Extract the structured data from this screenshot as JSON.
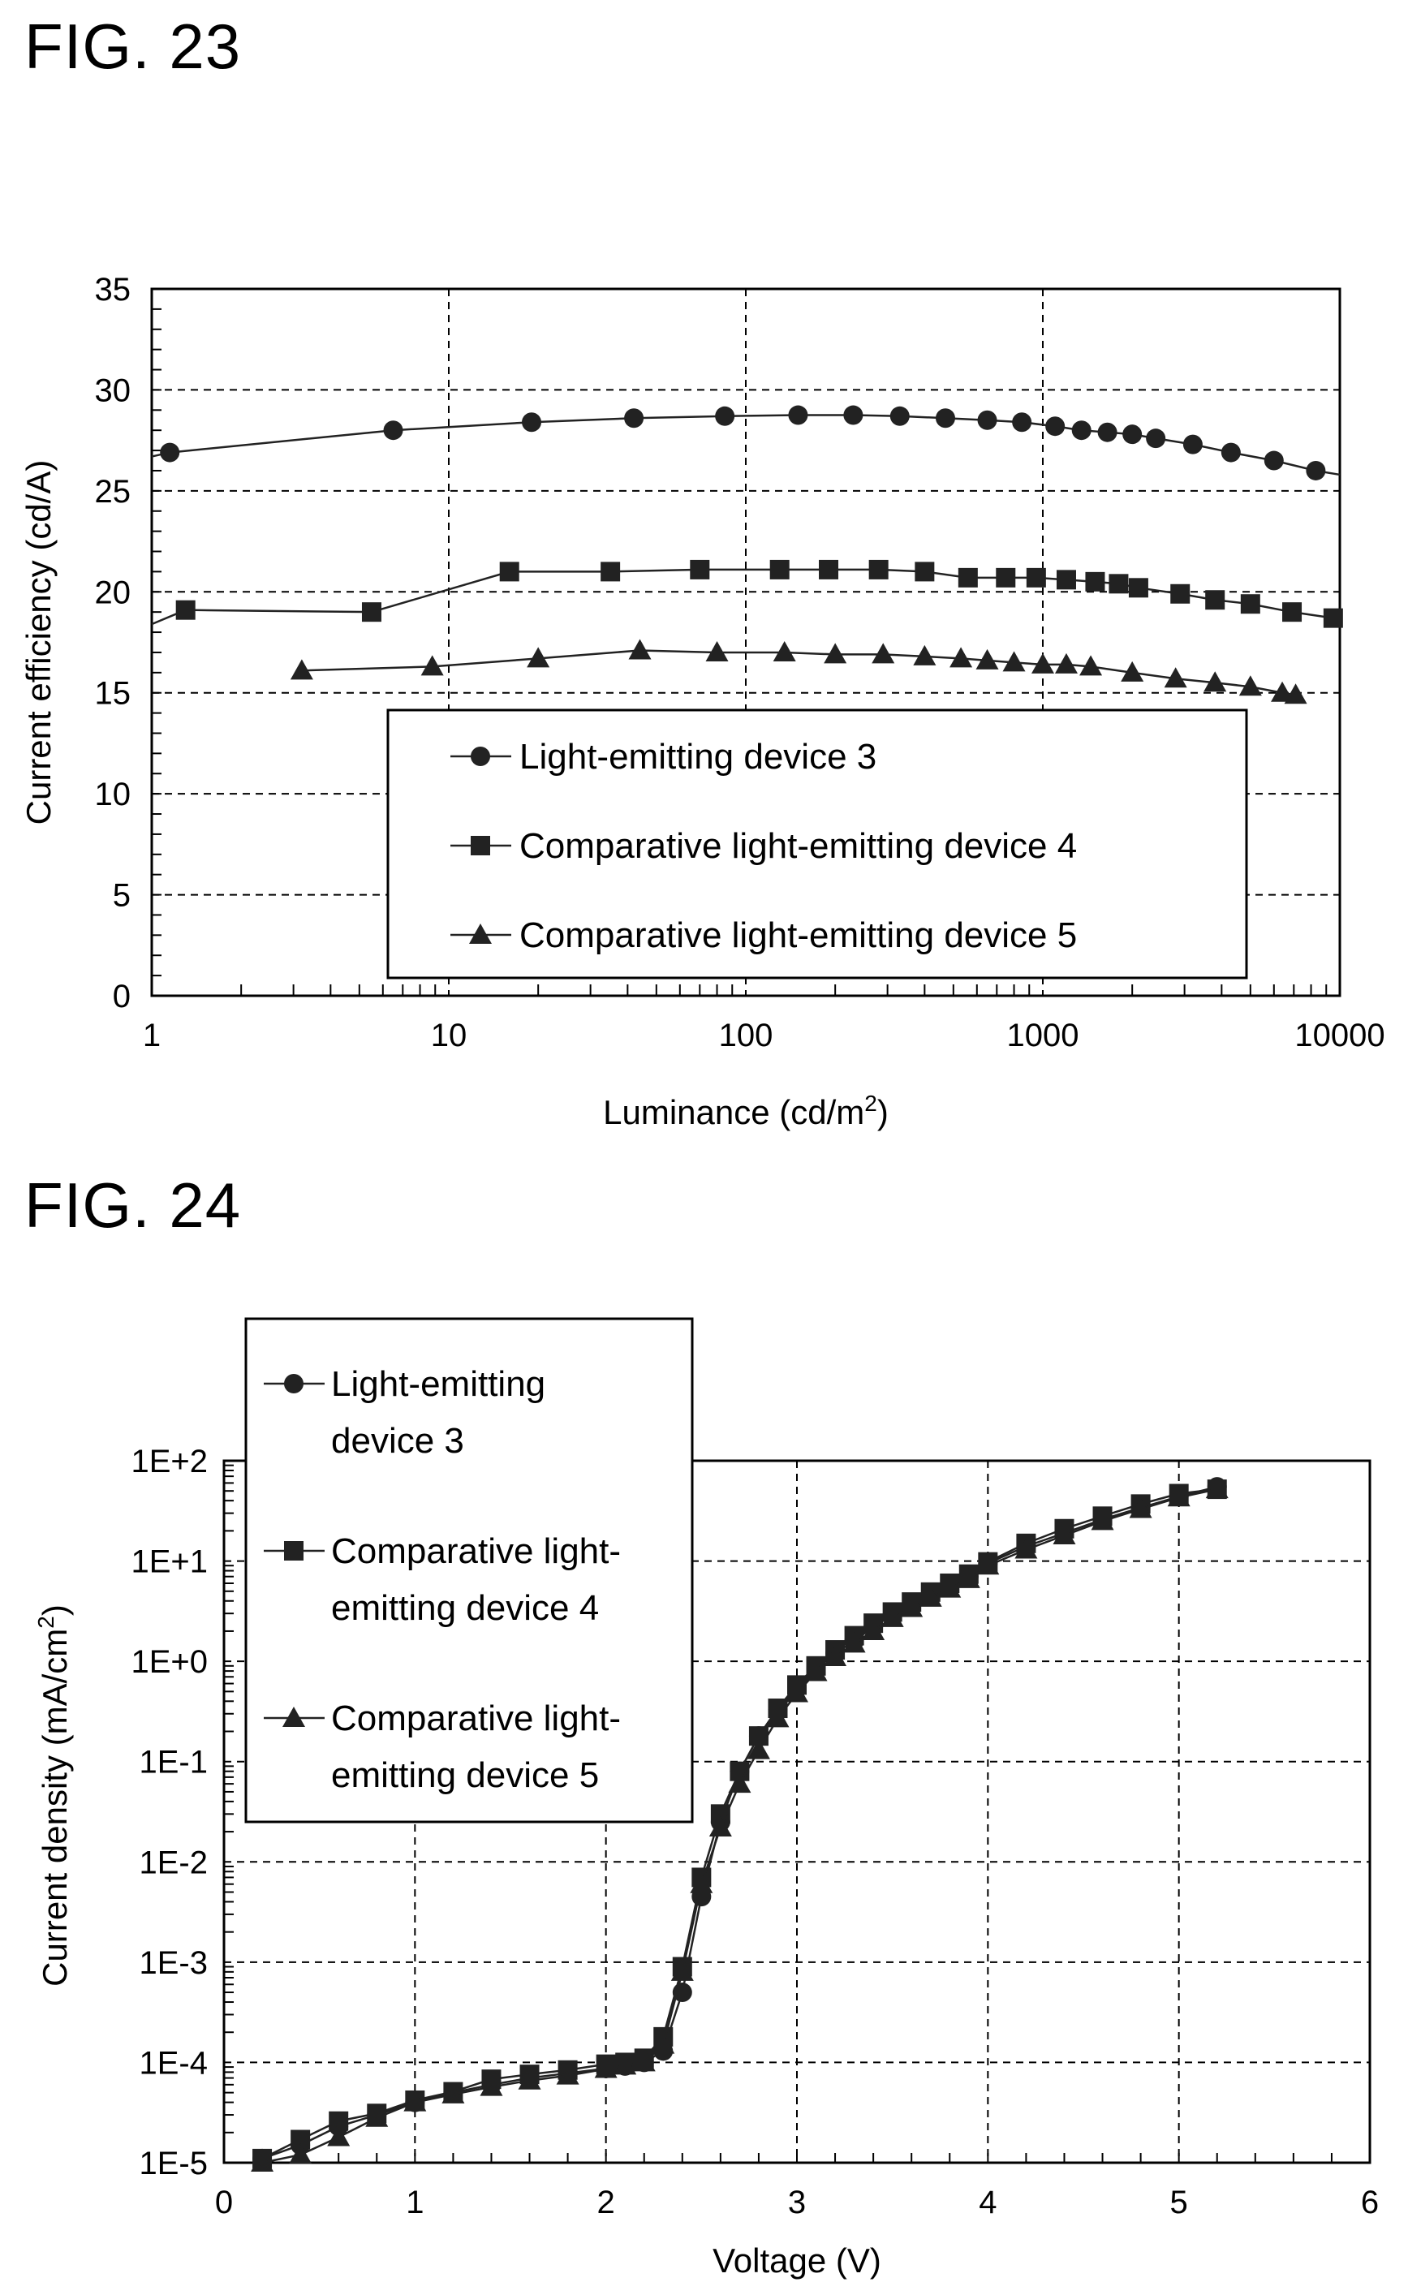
{
  "figures": {
    "fig23": "FIG. 23",
    "fig24": "FIG. 24"
  },
  "chart_data": [
    {
      "type": "line",
      "title": "",
      "xlabel": "Luminance (cd/m",
      "xlabel_sup": "2",
      "xlabel_end": ")",
      "ylabel": "Current efficiency (cd/A)",
      "x_scale": "log",
      "xlim": [
        1,
        10000
      ],
      "ylim": [
        0,
        35
      ],
      "x_ticks": [
        "1",
        "10",
        "100",
        "1000",
        "10000"
      ],
      "y_ticks": [
        "0",
        "5",
        "10",
        "15",
        "20",
        "25",
        "30",
        "35"
      ],
      "grid": true,
      "legend_position": "bottom-right",
      "series": [
        {
          "name": "Light-emitting device 3",
          "marker": "circle",
          "line_start": [
            1,
            26.7
          ],
          "x": [
            1.15,
            6.5,
            19,
            42,
            85,
            150,
            230,
            330,
            470,
            650,
            850,
            1100,
            1350,
            1650,
            2000,
            2400,
            3200,
            4300,
            6000,
            8300
          ],
          "y": [
            26.9,
            28.0,
            28.4,
            28.6,
            28.7,
            28.75,
            28.75,
            28.7,
            28.6,
            28.5,
            28.4,
            28.2,
            28.0,
            27.9,
            27.8,
            27.6,
            27.3,
            26.9,
            26.5,
            26.0
          ],
          "line_end": [
            10000,
            25.8
          ]
        },
        {
          "name": "Comparative light-emitting device 4",
          "marker": "square",
          "line_start": [
            1,
            18.4
          ],
          "x": [
            1.3,
            5.5,
            16,
            35,
            70,
            130,
            190,
            280,
            400,
            560,
            750,
            950,
            1200,
            1500,
            1800,
            2100,
            2900,
            3800,
            5000,
            6900,
            9500
          ],
          "y": [
            19.1,
            19.0,
            21.0,
            21.0,
            21.1,
            21.1,
            21.1,
            21.1,
            21.0,
            20.7,
            20.7,
            20.7,
            20.6,
            20.5,
            20.4,
            20.2,
            19.9,
            19.6,
            19.4,
            19.0,
            18.7
          ],
          "line_end": [
            10000,
            18.6
          ]
        },
        {
          "name": "Comparative light-emitting device 5",
          "marker": "triangle",
          "x": [
            3.2,
            8.8,
            20,
            44,
            80,
            135,
            200,
            290,
            400,
            530,
            650,
            800,
            1000,
            1200,
            1450,
            2000,
            2800,
            3800,
            5000,
            6400,
            7100
          ],
          "y": [
            16.1,
            16.3,
            16.7,
            17.1,
            17.0,
            17.0,
            16.9,
            16.9,
            16.8,
            16.7,
            16.6,
            16.5,
            16.4,
            16.4,
            16.3,
            16.0,
            15.7,
            15.5,
            15.3,
            15.0,
            14.9
          ]
        }
      ]
    },
    {
      "type": "line",
      "title": "",
      "xlabel": "Voltage (V)",
      "ylabel": "Current density (mA/cm",
      "ylabel_sup": "2",
      "ylabel_end": ")",
      "y_scale": "log",
      "xlim": [
        0,
        6
      ],
      "ylim": [
        1e-05,
        100
      ],
      "x_ticks": [
        "0",
        "1",
        "2",
        "3",
        "4",
        "5",
        "6"
      ],
      "y_ticks": [
        "1E-5",
        "1E-4",
        "1E-3",
        "1E-2",
        "1E-1",
        "1E+0",
        "1E+1",
        "1E+2"
      ],
      "grid": true,
      "legend_position": "top-left",
      "series": [
        {
          "name": "Light-emitting device 3",
          "legend_lines": [
            "Light-emitting",
            "device 3"
          ],
          "marker": "circle",
          "x": [
            0.2,
            0.4,
            0.6,
            0.8,
            1.0,
            1.2,
            1.4,
            1.6,
            1.8,
            2.0,
            2.1,
            2.2,
            2.3,
            2.4,
            2.5,
            2.6,
            2.7,
            2.8,
            2.9,
            3.0,
            3.1,
            3.2,
            3.3,
            3.4,
            3.5,
            3.6,
            3.7,
            3.8,
            3.9,
            4.0,
            4.2,
            4.4,
            4.6,
            4.8,
            5.0,
            5.2
          ],
          "y": [
            1.1e-05,
            1.5e-05,
            2.3e-05,
            3e-05,
            4e-05,
            5e-05,
            6e-05,
            7e-05,
            7.8e-05,
            8.7e-05,
            9.2e-05,
            0.0001,
            0.00013,
            0.0005,
            0.0045,
            0.025,
            0.08,
            0.18,
            0.33,
            0.55,
            0.85,
            1.2,
            1.6,
            2.2,
            2.9,
            3.7,
            4.6,
            5.8,
            7.0,
            9.5,
            14.0,
            19.0,
            26.0,
            34.0,
            44.0,
            55.0
          ]
        },
        {
          "name": "Comparative light-emitting device 4",
          "legend_lines": [
            "Comparative light-",
            "emitting device 4"
          ],
          "marker": "square",
          "x": [
            0.2,
            0.4,
            0.6,
            0.8,
            1.0,
            1.2,
            1.4,
            1.6,
            1.8,
            2.0,
            2.1,
            2.2,
            2.3,
            2.4,
            2.5,
            2.6,
            2.7,
            2.8,
            2.9,
            3.0,
            3.1,
            3.2,
            3.3,
            3.4,
            3.5,
            3.6,
            3.7,
            3.8,
            3.9,
            4.0,
            4.2,
            4.4,
            4.6,
            4.8,
            5.0,
            5.2
          ],
          "y": [
            1.1e-05,
            1.7e-05,
            2.6e-05,
            3.1e-05,
            4.2e-05,
            5.1e-05,
            6.8e-05,
            7.6e-05,
            8.4e-05,
            9.6e-05,
            0.0001,
            0.00011,
            0.00018,
            0.0009,
            0.007,
            0.03,
            0.08,
            0.18,
            0.34,
            0.58,
            0.9,
            1.3,
            1.8,
            2.4,
            3.1,
            3.9,
            4.9,
            6.0,
            7.4,
            9.8,
            15.0,
            21.0,
            28.0,
            37.0,
            47.0,
            52.0
          ]
        },
        {
          "name": "Comparative light-emitting device 5",
          "legend_lines": [
            "Comparative light-",
            "emitting device 5"
          ],
          "marker": "triangle",
          "x": [
            0.2,
            0.4,
            0.6,
            0.8,
            1.0,
            1.2,
            1.4,
            1.6,
            1.8,
            2.0,
            2.1,
            2.2,
            2.3,
            2.4,
            2.5,
            2.6,
            2.7,
            2.8,
            2.9,
            3.0,
            3.1,
            3.2,
            3.3,
            3.4,
            3.5,
            3.6,
            3.7,
            3.8,
            3.9,
            4.0,
            4.2,
            4.4,
            4.6,
            4.8,
            5.0,
            5.2
          ],
          "y": [
            1e-05,
            1.2e-05,
            1.8e-05,
            2.8e-05,
            4e-05,
            4.8e-05,
            5.7e-05,
            6.6e-05,
            7.4e-05,
            8.6e-05,
            9.3e-05,
            0.0001,
            0.00015,
            0.0008,
            0.006,
            0.022,
            0.06,
            0.13,
            0.27,
            0.48,
            0.78,
            1.1,
            1.5,
            2.0,
            2.7,
            3.4,
            4.3,
            5.3,
            6.6,
            9.0,
            13.0,
            18.0,
            25.0,
            33.0,
            43.0,
            52.0
          ]
        }
      ]
    }
  ]
}
